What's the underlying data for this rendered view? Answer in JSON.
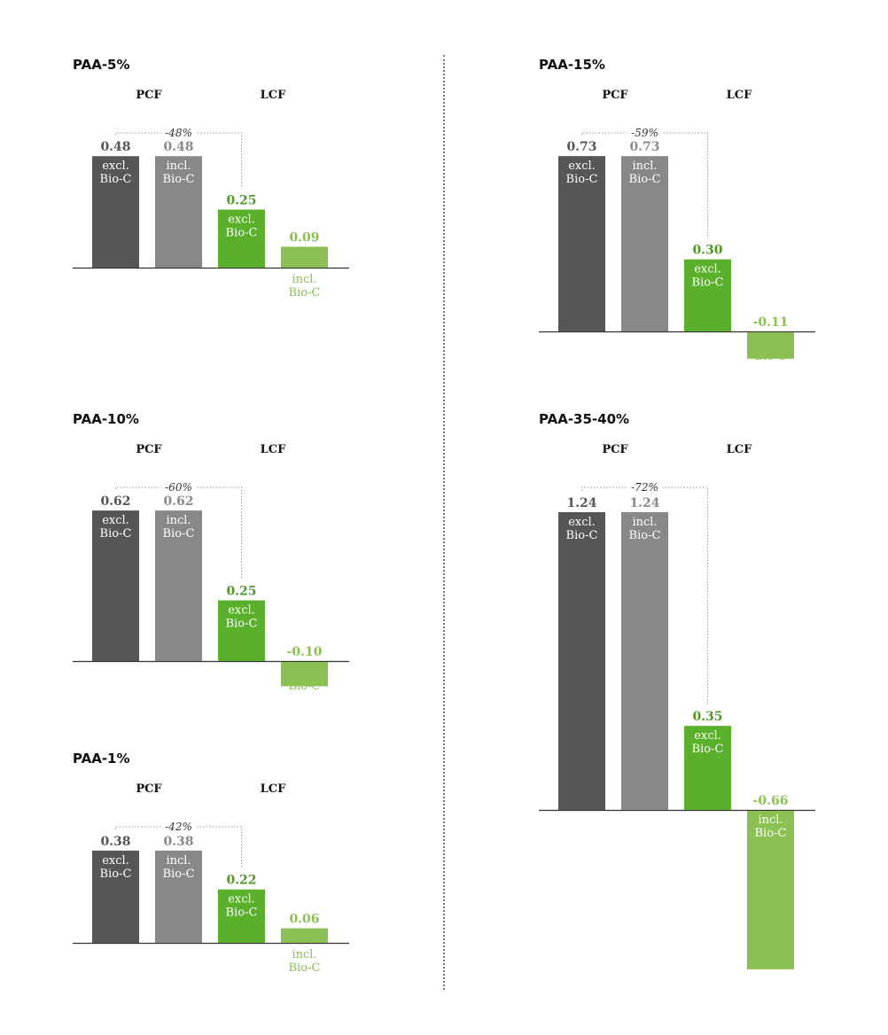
{
  "colors": {
    "pcf_excl": "#565656",
    "pcf_incl": "#888888",
    "lcf_excl": "#5ab02b",
    "lcf_incl": "#8bc153",
    "text_on_bar": "#ffffff",
    "baseline": "#333333",
    "bracket": "#999999"
  },
  "labels": {
    "pcf": "PCF",
    "lcf": "LCF",
    "excl": "excl.",
    "incl": "incl.",
    "bio": "Bio-C"
  },
  "chart_data": [
    {
      "type": "bar",
      "title": "PAA-5%",
      "categories": [
        "PCF excl. Bio-C",
        "PCF incl. Bio-C",
        "LCF excl. Bio-C",
        "LCF incl. Bio-C"
      ],
      "values": [
        0.48,
        0.48,
        0.25,
        0.09
      ],
      "value_labels": [
        "0.48",
        "0.48",
        "0.25",
        "0.09"
      ],
      "reduction": "-48%"
    },
    {
      "type": "bar",
      "title": "PAA-10%",
      "categories": [
        "PCF excl. Bio-C",
        "PCF incl. Bio-C",
        "LCF excl. Bio-C",
        "LCF incl. Bio-C"
      ],
      "values": [
        0.62,
        0.62,
        0.25,
        -0.1
      ],
      "value_labels": [
        "0.62",
        "0.62",
        "0.25",
        "-0.10"
      ],
      "reduction": "-60%"
    },
    {
      "type": "bar",
      "title": "PAA-1%",
      "categories": [
        "PCF excl. Bio-C",
        "PCF incl. Bio-C",
        "LCF excl. Bio-C",
        "LCF incl. Bio-C"
      ],
      "values": [
        0.38,
        0.38,
        0.22,
        0.06
      ],
      "value_labels": [
        "0.38",
        "0.38",
        "0.22",
        "0.06"
      ],
      "reduction": "-42%"
    },
    {
      "type": "bar",
      "title": "PAA-15%",
      "categories": [
        "PCF excl. Bio-C",
        "PCF incl. Bio-C",
        "LCF excl. Bio-C",
        "LCF incl. Bio-C"
      ],
      "values": [
        0.73,
        0.73,
        0.3,
        -0.11
      ],
      "value_labels": [
        "0.73",
        "0.73",
        "0.30",
        "-0.11"
      ],
      "reduction": "-59%"
    },
    {
      "type": "bar",
      "title": "PAA-35-40%",
      "categories": [
        "PCF excl. Bio-C",
        "PCF incl. Bio-C",
        "LCF excl. Bio-C",
        "LCF incl. Bio-C"
      ],
      "values": [
        1.24,
        1.24,
        0.35,
        -0.66
      ],
      "value_labels": [
        "1.24",
        "1.24",
        "0.35",
        "-0.66"
      ],
      "reduction": "-72%"
    }
  ]
}
